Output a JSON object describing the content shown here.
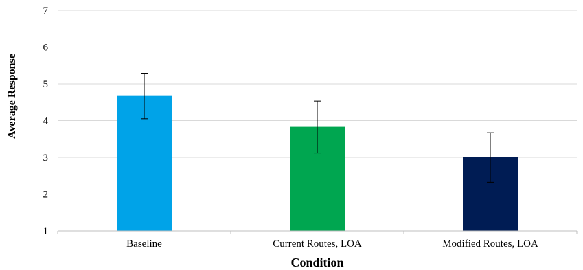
{
  "chart_data": {
    "type": "bar",
    "title": "",
    "xlabel": "Condition",
    "ylabel": "Average Response",
    "ylim": [
      1,
      7
    ],
    "yticks": [
      1,
      2,
      3,
      4,
      5,
      6,
      7
    ],
    "grid": true,
    "legend": "none",
    "categories": [
      "Baseline",
      "Current Routes, LOA",
      "Modified Routes, LOA"
    ],
    "values": [
      4.67,
      3.83,
      3.0
    ],
    "error_low": [
      4.05,
      3.12,
      2.32
    ],
    "error_high": [
      5.29,
      4.53,
      3.67
    ],
    "colors": [
      "#00a3e8",
      "#00a650",
      "#001c54"
    ]
  }
}
